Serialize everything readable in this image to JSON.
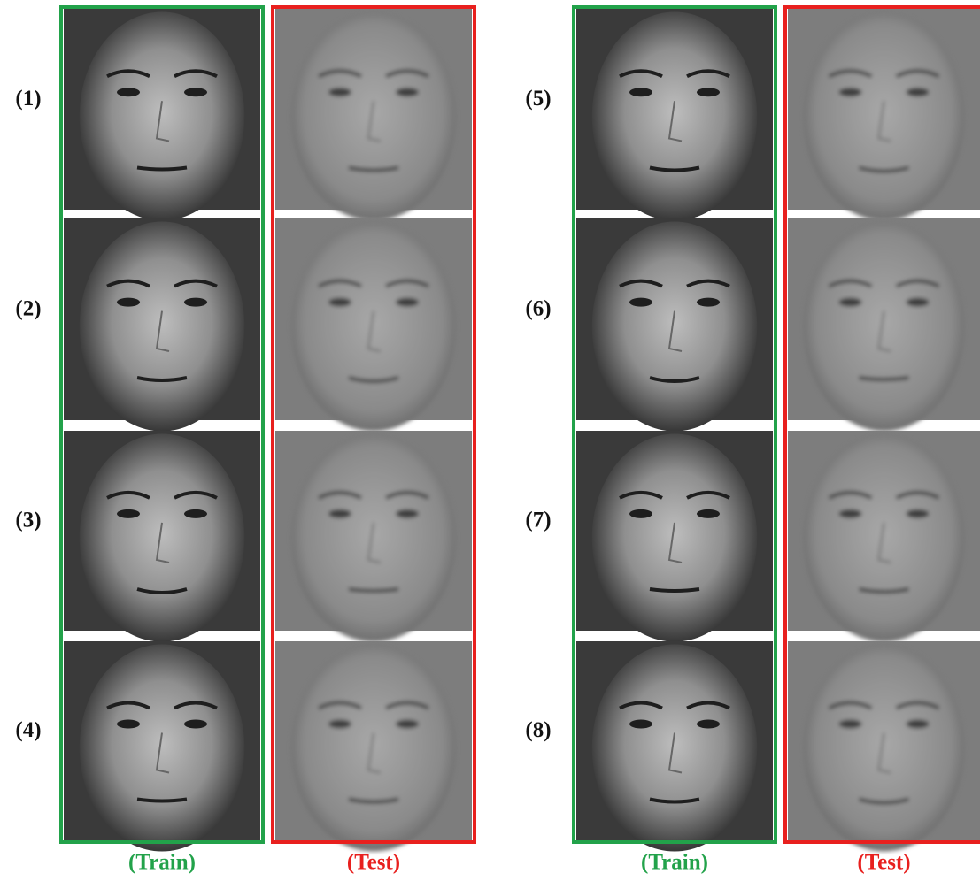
{
  "panels": [
    {
      "rows": [
        "(1)",
        "(2)",
        "(3)",
        "(4)"
      ],
      "train_caption": "(Train)",
      "test_caption": "(Test)"
    },
    {
      "rows": [
        "(5)",
        "(6)",
        "(7)",
        "(8)"
      ],
      "train_caption": "(Train)",
      "test_caption": "(Test)"
    }
  ]
}
